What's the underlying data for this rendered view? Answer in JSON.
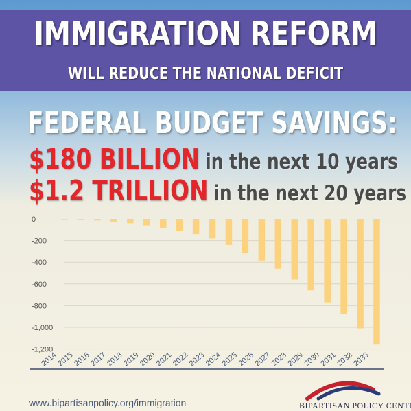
{
  "banner": {
    "title": "IMMIGRATION REFORM",
    "subtitle": "WILL REDUCE THE NATIONAL DEFICIT"
  },
  "savings": {
    "heading": "FEDERAL BUDGET SAVINGS:",
    "line1_amount": "$180 BILLION",
    "line1_text": "in the next 10 years",
    "line2_amount": "$1.2 TRILLION",
    "line2_text": "in the next 20 years"
  },
  "footer": {
    "url": "www.bipartisanpolicy.org/immigration",
    "logo_text": "BIPARTISAN POLICY CENTER"
  },
  "colors": {
    "banner": "#5d54a6",
    "accent_red": "#e2262a",
    "bar": "#fcd27e",
    "logo_red": "#c8202f",
    "logo_blue": "#2b3a78"
  },
  "chart_data": {
    "type": "bar",
    "categories": [
      "2014",
      "2015",
      "2016",
      "2017",
      "2018",
      "2019",
      "2020",
      "2021",
      "2022",
      "2023",
      "2024",
      "2025",
      "2026",
      "2027",
      "2028",
      "2029",
      "2030",
      "2031",
      "2032",
      "2033"
    ],
    "values": [
      0,
      -5,
      -15,
      -25,
      -40,
      -60,
      -85,
      -110,
      -140,
      -180,
      -240,
      -310,
      -385,
      -460,
      -560,
      -660,
      -770,
      -880,
      -1010,
      -1160
    ],
    "y_ticks": [
      "0",
      "-200",
      "-400",
      "-600",
      "-800",
      "-1,000",
      "-1,200"
    ],
    "ylim": [
      -1200,
      0
    ],
    "grid": true,
    "title": "",
    "xlabel": "",
    "ylabel": ""
  }
}
